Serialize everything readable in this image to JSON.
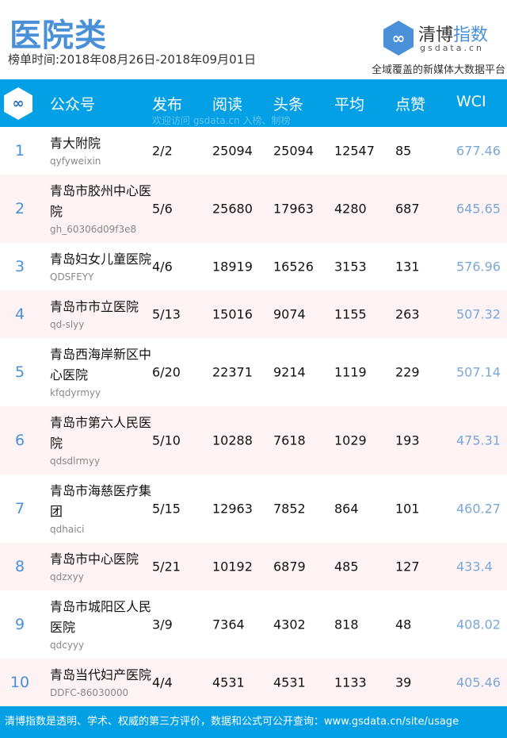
{
  "title": "医院类",
  "period": "榜单时间:2018年08月26日-2018年09月01日",
  "brand": {
    "name_a": "清博",
    "name_b": "指数",
    "domain": "gsdata.cn",
    "slogan": "全域覆盖的新媒体大数据平台",
    "logo_icon": "infinity-icon",
    "color": "#4a90d9"
  },
  "header": {
    "account": "公众号",
    "publish": "发布",
    "read": "阅读",
    "headline": "头条",
    "avg": "平均",
    "likes": "点赞",
    "wci": "WCI",
    "watermark": "欢迎访问 gsdata.cn 入榜、制榜",
    "bg": "#03a0e6"
  },
  "rows": [
    {
      "rank": "1",
      "name": "青大附院",
      "id": "qyfyweixin",
      "publish": "2/2",
      "read": "25094",
      "headline": "25094",
      "avg": "12547",
      "likes": "85",
      "wci": "677.46"
    },
    {
      "rank": "2",
      "name": "青岛市胶州中心医院",
      "id": "gh_60306d09f3e8",
      "publish": "5/6",
      "read": "25680",
      "headline": "17963",
      "avg": "4280",
      "likes": "687",
      "wci": "645.65"
    },
    {
      "rank": "3",
      "name": "青岛妇女儿童医院",
      "id": "QDSFEYY",
      "publish": "4/6",
      "read": "18919",
      "headline": "16526",
      "avg": "3153",
      "likes": "131",
      "wci": "576.96"
    },
    {
      "rank": "4",
      "name": "青岛市市立医院",
      "id": "qd-slyy",
      "publish": "5/13",
      "read": "15016",
      "headline": "9074",
      "avg": "1155",
      "likes": "263",
      "wci": "507.32"
    },
    {
      "rank": "5",
      "name": "青岛西海岸新区中心医院",
      "id": "kfqdyrmyy",
      "publish": "6/20",
      "read": "22371",
      "headline": "9214",
      "avg": "1119",
      "likes": "229",
      "wci": "507.14"
    },
    {
      "rank": "6",
      "name": "青岛市第六人民医院",
      "id": "qdsdlrmyy",
      "publish": "5/10",
      "read": "10288",
      "headline": "7618",
      "avg": "1029",
      "likes": "193",
      "wci": "475.31"
    },
    {
      "rank": "7",
      "name": "青岛市海慈医疗集团",
      "id": "qdhaici",
      "publish": "5/15",
      "read": "12963",
      "headline": "7852",
      "avg": "864",
      "likes": "101",
      "wci": "460.27"
    },
    {
      "rank": "8",
      "name": "青岛市中心医院",
      "id": "qdzxyy",
      "publish": "5/21",
      "read": "10192",
      "headline": "6879",
      "avg": "485",
      "likes": "127",
      "wci": "433.4"
    },
    {
      "rank": "9",
      "name": "青岛市城阳区人民医院",
      "id": "qdcyyy",
      "publish": "3/9",
      "read": "7364",
      "headline": "4302",
      "avg": "818",
      "likes": "48",
      "wci": "408.02"
    },
    {
      "rank": "10",
      "name": "青岛当代妇产医院",
      "id": "DDFC-86030000",
      "publish": "4/4",
      "read": "4531",
      "headline": "4531",
      "avg": "1133",
      "likes": "39",
      "wci": "405.46"
    }
  ],
  "footer": "清博指数是透明、学术、权威的第三方评价，数据和公式可公开查询：www.gsdata.cn/site/usage"
}
